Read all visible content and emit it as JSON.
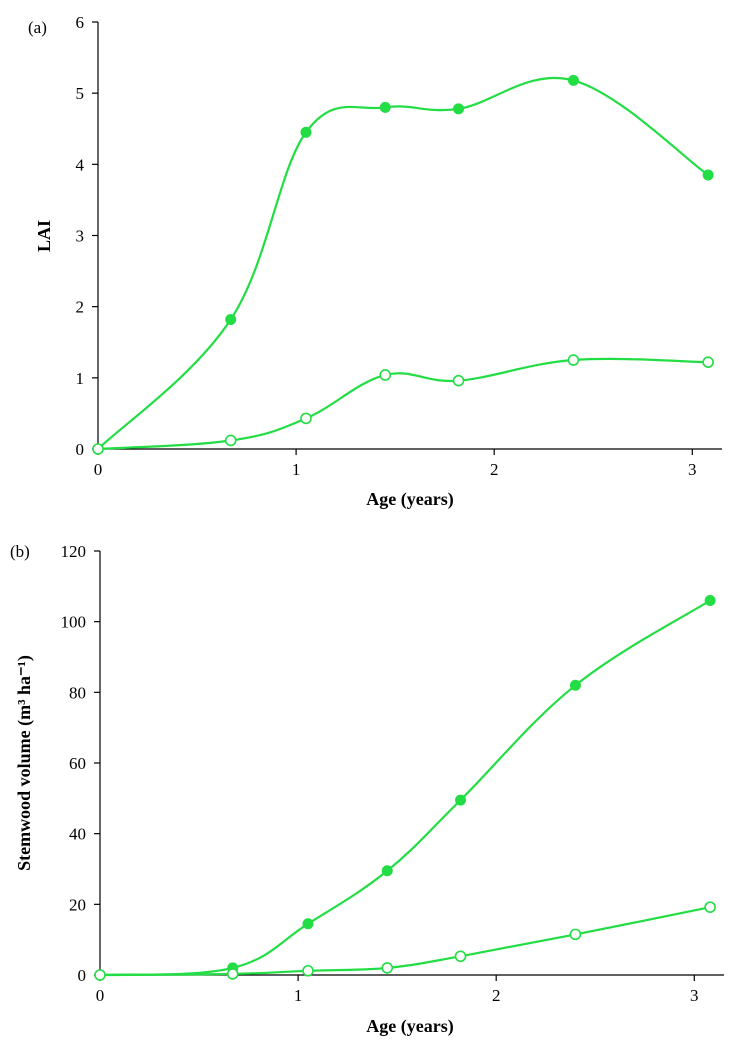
{
  "colors": {
    "series": "#22dd44",
    "axis": "#000000",
    "background": "#ffffff"
  },
  "chart_data": [
    {
      "type": "line",
      "panel_label": "(a)",
      "xlabel": "Age (years)",
      "ylabel": "LAI",
      "xlim": [
        0,
        3.15
      ],
      "ylim": [
        0,
        6
      ],
      "xticks": [
        0,
        1,
        2,
        3
      ],
      "yticks": [
        0,
        1,
        2,
        3,
        4,
        5,
        6
      ],
      "grid": false,
      "series": [
        {
          "marker": "filled-circle",
          "points": [
            {
              "x": 0,
              "y": 0
            },
            {
              "x": 0.67,
              "y": 1.82
            },
            {
              "x": 1.05,
              "y": 4.45
            },
            {
              "x": 1.45,
              "y": 4.8
            },
            {
              "x": 1.82,
              "y": 4.78
            },
            {
              "x": 2.4,
              "y": 5.18
            },
            {
              "x": 3.08,
              "y": 3.85
            }
          ]
        },
        {
          "marker": "open-circle",
          "points": [
            {
              "x": 0,
              "y": 0
            },
            {
              "x": 0.67,
              "y": 0.12
            },
            {
              "x": 1.05,
              "y": 0.43
            },
            {
              "x": 1.45,
              "y": 1.04
            },
            {
              "x": 1.82,
              "y": 0.96
            },
            {
              "x": 2.4,
              "y": 1.25
            },
            {
              "x": 3.08,
              "y": 1.22
            }
          ]
        }
      ]
    },
    {
      "type": "line",
      "panel_label": "(b)",
      "xlabel": "Age (years)",
      "ylabel": "Stemwood volume (m³ ha⁻¹)",
      "xlim": [
        0,
        3.15
      ],
      "ylim": [
        0,
        120
      ],
      "xticks": [
        0,
        1,
        2,
        3
      ],
      "yticks": [
        0,
        20,
        40,
        60,
        80,
        100,
        120
      ],
      "grid": false,
      "series": [
        {
          "marker": "filled-circle",
          "points": [
            {
              "x": 0,
              "y": 0
            },
            {
              "x": 0.67,
              "y": 2
            },
            {
              "x": 1.05,
              "y": 14.5
            },
            {
              "x": 1.45,
              "y": 29.5
            },
            {
              "x": 1.82,
              "y": 49.5
            },
            {
              "x": 2.4,
              "y": 82
            },
            {
              "x": 3.08,
              "y": 106
            }
          ]
        },
        {
          "marker": "open-circle",
          "points": [
            {
              "x": 0,
              "y": 0
            },
            {
              "x": 0.67,
              "y": 0.3
            },
            {
              "x": 1.05,
              "y": 1.2
            },
            {
              "x": 1.45,
              "y": 2
            },
            {
              "x": 1.82,
              "y": 5.3
            },
            {
              "x": 2.4,
              "y": 11.5
            },
            {
              "x": 3.08,
              "y": 19.2
            }
          ]
        }
      ]
    }
  ]
}
